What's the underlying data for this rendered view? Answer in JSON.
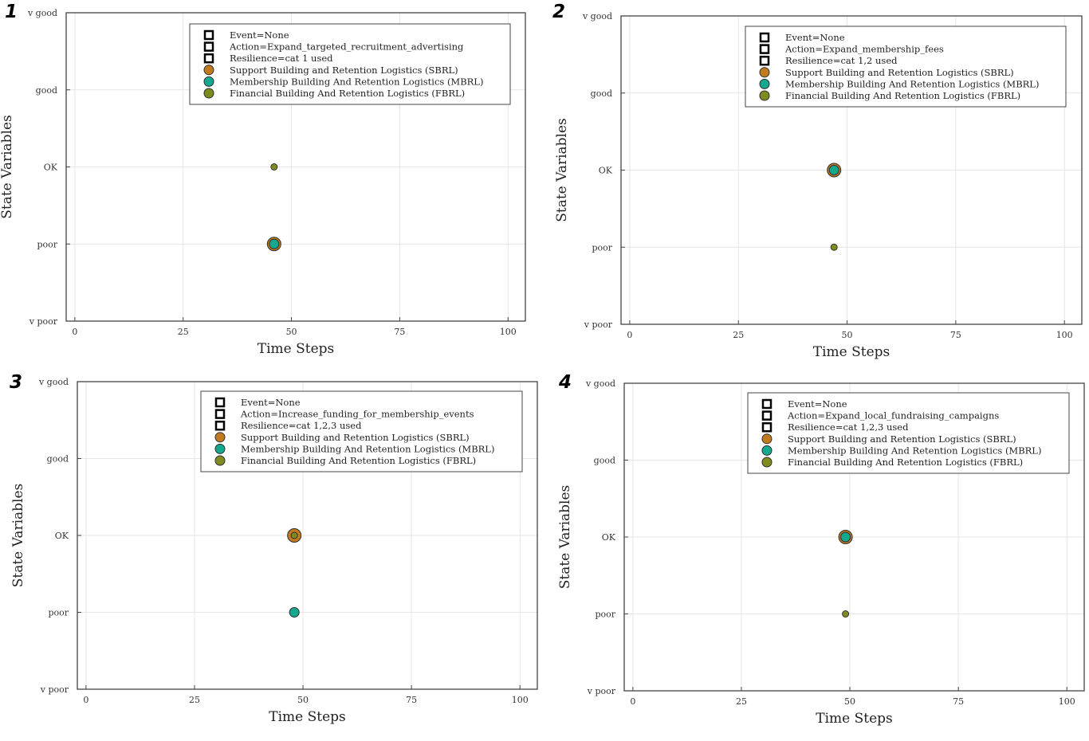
{
  "colors": {
    "SBRL": "#c27a1e",
    "MBRL": "#14a88e",
    "FBRL": "#7f8a1f",
    "frame": "#444444",
    "grid": "#e6e6e6"
  },
  "chart_data": [
    {
      "type": "scatter",
      "panel_label": "1",
      "xlabel": "Time Steps",
      "ylabel": "State Variables",
      "xlim": [
        -2,
        104
      ],
      "xticks": [
        0,
        25,
        50,
        75,
        100
      ],
      "ylim": [
        0,
        4
      ],
      "yticks": [
        0,
        1,
        2,
        3,
        4
      ],
      "ytick_labels": [
        "v poor",
        "poor",
        "OK",
        "good",
        "v good"
      ],
      "grid": true,
      "legend_position": "top-right",
      "legend_text": [
        "Event=None",
        "Action=Expand_targeted_recruitment_advertising",
        "Resilience=cat 1 used"
      ],
      "series": [
        {
          "name": "Support Building and Retention Logistics (SBRL)",
          "color_key": "SBRL",
          "size": "large",
          "points": [
            {
              "x": 46,
              "y": 1
            }
          ]
        },
        {
          "name": "Membership Building And Retention Logistics (MBRL)",
          "color_key": "MBRL",
          "size": "medium",
          "points": [
            {
              "x": 46,
              "y": 1
            }
          ]
        },
        {
          "name": "Financial Building And Retention Logistics (FBRL)",
          "color_key": "FBRL",
          "size": "small",
          "points": [
            {
              "x": 46,
              "y": 2
            }
          ]
        }
      ]
    },
    {
      "type": "scatter",
      "panel_label": "2",
      "xlabel": "Time Steps",
      "ylabel": "State Variables",
      "xlim": [
        -2,
        104
      ],
      "xticks": [
        0,
        25,
        50,
        75,
        100
      ],
      "ylim": [
        0,
        4
      ],
      "yticks": [
        0,
        1,
        2,
        3,
        4
      ],
      "ytick_labels": [
        "v poor",
        "poor",
        "OK",
        "good",
        "v good"
      ],
      "grid": true,
      "legend_position": "top-right",
      "legend_text": [
        "Event=None",
        "Action=Expand_membership_fees",
        "Resilience=cat 1,2 used"
      ],
      "series": [
        {
          "name": "Support Building and Retention Logistics (SBRL)",
          "color_key": "SBRL",
          "size": "large",
          "points": [
            {
              "x": 47,
              "y": 2
            }
          ]
        },
        {
          "name": "Membership Building And Retention Logistics (MBRL)",
          "color_key": "MBRL",
          "size": "medium",
          "points": [
            {
              "x": 47,
              "y": 2
            }
          ]
        },
        {
          "name": "Financial Building And Retention Logistics (FBRL)",
          "color_key": "FBRL",
          "size": "small",
          "points": [
            {
              "x": 47,
              "y": 1
            }
          ]
        }
      ]
    },
    {
      "type": "scatter",
      "panel_label": "3",
      "xlabel": "Time Steps",
      "ylabel": "State Variables",
      "xlim": [
        -2,
        104
      ],
      "xticks": [
        0,
        25,
        50,
        75,
        100
      ],
      "ylim": [
        0,
        4
      ],
      "yticks": [
        0,
        1,
        2,
        3,
        4
      ],
      "ytick_labels": [
        "v poor",
        "poor",
        "OK",
        "good",
        "v good"
      ],
      "grid": true,
      "legend_position": "top-right",
      "legend_text": [
        "Event=None",
        "Action=Increase_funding_for_membership_events",
        "Resilience=cat 1,2,3 used"
      ],
      "series": [
        {
          "name": "Support Building and Retention Logistics (SBRL)",
          "color_key": "SBRL",
          "size": "large",
          "points": [
            {
              "x": 48,
              "y": 2
            }
          ]
        },
        {
          "name": "Membership Building And Retention Logistics (MBRL)",
          "color_key": "MBRL",
          "size": "medium",
          "points": [
            {
              "x": 48,
              "y": 1
            }
          ]
        },
        {
          "name": "Financial Building And Retention Logistics (FBRL)",
          "color_key": "FBRL",
          "size": "small",
          "points": [
            {
              "x": 48,
              "y": 2
            }
          ]
        }
      ]
    },
    {
      "type": "scatter",
      "panel_label": "4",
      "xlabel": "Time Steps",
      "ylabel": "State Variables",
      "xlim": [
        -2,
        104
      ],
      "xticks": [
        0,
        25,
        50,
        75,
        100
      ],
      "ylim": [
        0,
        4
      ],
      "yticks": [
        0,
        1,
        2,
        3,
        4
      ],
      "ytick_labels": [
        "v poor",
        "poor",
        "OK",
        "good",
        "v good"
      ],
      "grid": true,
      "legend_position": "top-right",
      "legend_text": [
        "Event=None",
        "Action=Expand_local_fundraising_campaigns",
        "Resilience=cat 1,2,3 used"
      ],
      "series": [
        {
          "name": "Support Building and Retention Logistics (SBRL)",
          "color_key": "SBRL",
          "size": "large",
          "points": [
            {
              "x": 49,
              "y": 2
            }
          ]
        },
        {
          "name": "Membership Building And Retention Logistics (MBRL)",
          "color_key": "MBRL",
          "size": "medium",
          "points": [
            {
              "x": 49,
              "y": 2
            }
          ]
        },
        {
          "name": "Financial Building And Retention Logistics (FBRL)",
          "color_key": "FBRL",
          "size": "small",
          "points": [
            {
              "x": 49,
              "y": 1
            }
          ]
        }
      ]
    }
  ]
}
